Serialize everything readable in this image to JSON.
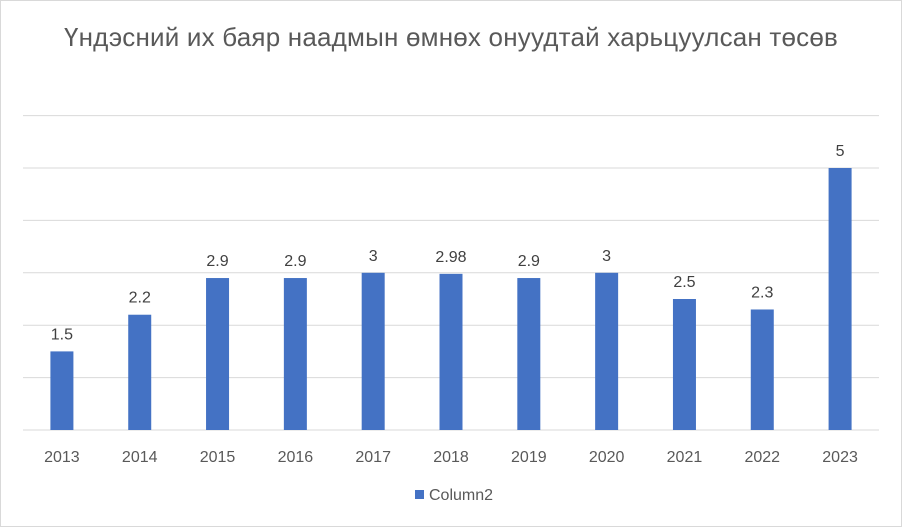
{
  "chart_data": {
    "type": "bar",
    "title": "Үндэсний их баяр наадмын өмнөх онуудтай харьцуулсан төсөв",
    "categories": [
      "2013",
      "2014",
      "2015",
      "2016",
      "2017",
      "2018",
      "2019",
      "2020",
      "2021",
      "2022",
      "2023"
    ],
    "series": [
      {
        "name": "Column2",
        "values": [
          1.5,
          2.2,
          2.9,
          2.9,
          3,
          2.98,
          2.9,
          3,
          2.5,
          2.3,
          5
        ],
        "labels": [
          "1.5",
          "2.2",
          "2.9",
          "2.9",
          "3",
          "2.98",
          "2.9",
          "3",
          "2.5",
          "2.3",
          "5"
        ],
        "color": "#4472c4"
      }
    ],
    "xlabel": "",
    "ylabel": "",
    "ylim": [
      0,
      6
    ],
    "grid": true,
    "y_tick_labels_shown": false,
    "legend_position": "bottom"
  }
}
